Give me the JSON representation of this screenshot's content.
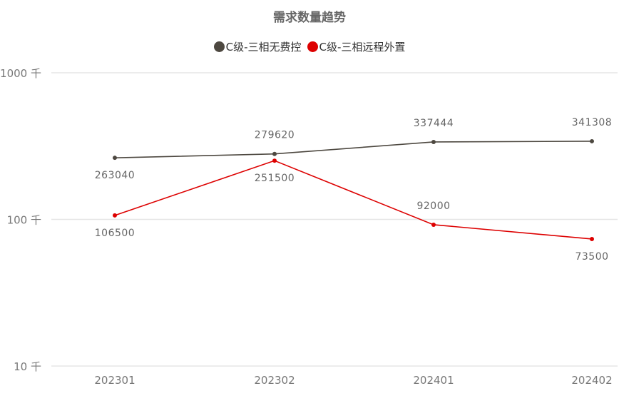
{
  "chart_data": {
    "type": "line",
    "title": "需求数量趋势",
    "categories": [
      "202301",
      "202302",
      "202401",
      "202402"
    ],
    "series": [
      {
        "name": "C级-三相无费控",
        "color": "#4d4840",
        "values": [
          263040,
          279620,
          337444,
          341308
        ]
      },
      {
        "name": "C级-三相远程外置",
        "color": "#dd0000",
        "values": [
          106500,
          251500,
          92000,
          73500
        ]
      }
    ],
    "y_scale": "log",
    "y_unit_divisor": 1000,
    "yticks": [
      {
        "value": 10,
        "label": "10 千"
      },
      {
        "value": 100,
        "label": "100 千"
      },
      {
        "value": 1000,
        "label": "1000 千"
      }
    ],
    "ylim": [
      10,
      1000
    ],
    "grid": true,
    "legend_position": "top"
  }
}
